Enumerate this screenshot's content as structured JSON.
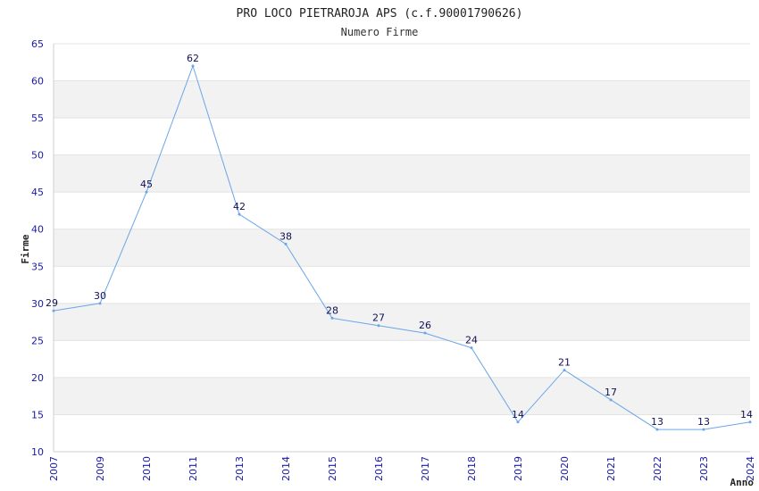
{
  "chart_data": {
    "type": "line",
    "title": "PRO LOCO PIETRAROJA APS (c.f.90001790626)",
    "subtitle": "Numero Firme",
    "xlabel": "Anno",
    "ylabel": "Firme",
    "ylim": [
      10,
      65
    ],
    "yticks": [
      "10",
      "15",
      "20",
      "25",
      "30",
      "35",
      "40",
      "45",
      "50",
      "55",
      "60",
      "65"
    ],
    "grid": true,
    "colors": {
      "line": "#6aa6e6",
      "band": "#f2f2f2",
      "tick_text": "#1a1aa6",
      "label_text": "#111155"
    },
    "series": [
      {
        "x": [
          "2007",
          "2009",
          "2010",
          "2011",
          "2013",
          "2014",
          "2015",
          "2016",
          "2017",
          "2018",
          "2019",
          "2020",
          "2021",
          "2022",
          "2023",
          "2024"
        ],
        "values": [
          29,
          30,
          45,
          62,
          42,
          38,
          28,
          27,
          26,
          24,
          14,
          21,
          17,
          13,
          13,
          14
        ]
      }
    ]
  }
}
